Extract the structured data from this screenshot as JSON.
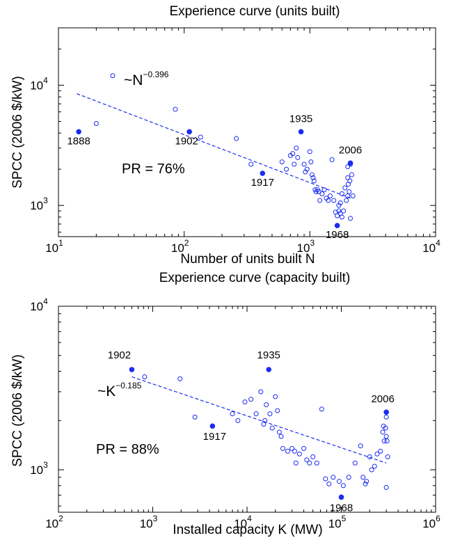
{
  "chart_data": [
    {
      "type": "scatter",
      "title": "Experience curve (units built)",
      "xlabel": "Number of units built N",
      "ylabel": "SPCC (2006 $/kW)",
      "xscale": "log",
      "yscale": "log",
      "xlim": [
        10,
        10000
      ],
      "ylim": [
        550,
        30000
      ],
      "xticks": [
        {
          "value": 10,
          "base": "10",
          "exp": "1"
        },
        {
          "value": 100,
          "base": "10",
          "exp": "2"
        },
        {
          "value": 1000,
          "base": "10",
          "exp": "3"
        },
        {
          "value": 10000,
          "base": "10",
          "exp": "4"
        }
      ],
      "yticks": [
        {
          "value": 1000,
          "base": "10",
          "exp": "3"
        },
        {
          "value": 10000,
          "base": "10",
          "exp": "4"
        }
      ],
      "fit_label": {
        "base": "~N",
        "exp": "−0.396"
      },
      "pr_label": "PR = 76%",
      "fit_line": {
        "x": [
          14,
          2100
        ],
        "y": [
          8500,
          1150
        ]
      },
      "highlighted": [
        {
          "year": "1888",
          "x": 14.5,
          "y": 4100
        },
        {
          "year": "1902",
          "x": 110,
          "y": 4100
        },
        {
          "year": "1917",
          "x": 420,
          "y": 1850
        },
        {
          "year": "1935",
          "x": 850,
          "y": 4100
        },
        {
          "year": "1968",
          "x": 1650,
          "y": 680
        },
        {
          "year": "2006",
          "x": 2100,
          "y": 2250
        }
      ],
      "open_points": [
        [
          20,
          4800
        ],
        [
          27,
          12000
        ],
        [
          85,
          6300
        ],
        [
          135,
          3700
        ],
        [
          260,
          3600
        ],
        [
          340,
          2200
        ],
        [
          600,
          2300
        ],
        [
          650,
          2000
        ],
        [
          700,
          2600
        ],
        [
          730,
          2700
        ],
        [
          750,
          2200
        ],
        [
          780,
          3000
        ],
        [
          800,
          2500
        ],
        [
          900,
          2200
        ],
        [
          920,
          1900
        ],
        [
          950,
          2000
        ],
        [
          1000,
          2800
        ],
        [
          1020,
          2300
        ],
        [
          1040,
          1800
        ],
        [
          1060,
          1700
        ],
        [
          1080,
          1600
        ],
        [
          1100,
          1350
        ],
        [
          1120,
          1300
        ],
        [
          1150,
          1350
        ],
        [
          1180,
          1300
        ],
        [
          1200,
          1100
        ],
        [
          1250,
          1250
        ],
        [
          1300,
          1350
        ],
        [
          1350,
          1150
        ],
        [
          1400,
          1100
        ],
        [
          1450,
          1200
        ],
        [
          1500,
          2400
        ],
        [
          1550,
          1100
        ],
        [
          1600,
          880
        ],
        [
          1650,
          820
        ],
        [
          1700,
          900
        ],
        [
          1750,
          860
        ],
        [
          1800,
          800
        ],
        [
          1850,
          900
        ],
        [
          1900,
          1400
        ],
        [
          1950,
          1100
        ],
        [
          2000,
          1700
        ],
        [
          2000,
          1200
        ],
        [
          2020,
          1500
        ],
        [
          2050,
          1300
        ],
        [
          2080,
          1600
        ],
        [
          2100,
          780
        ],
        [
          2150,
          1800
        ],
        [
          2200,
          1200
        ],
        [
          1700,
          1000
        ],
        [
          1750,
          1050
        ],
        [
          1800,
          1250
        ],
        [
          2000,
          2100
        ],
        [
          2100,
          2200
        ]
      ]
    },
    {
      "type": "scatter",
      "title": "Experience curve (capacity built)",
      "xlabel": "Installed capacity K (MW)",
      "ylabel": "SPCC (2006 $/kW)",
      "xscale": "log",
      "yscale": "log",
      "xlim": [
        100,
        1000000
      ],
      "ylim": [
        550,
        10000
      ],
      "xticks": [
        {
          "value": 100,
          "base": "10",
          "exp": "2"
        },
        {
          "value": 1000,
          "base": "10",
          "exp": "3"
        },
        {
          "value": 10000,
          "base": "10",
          "exp": "4"
        },
        {
          "value": 100000,
          "base": "10",
          "exp": "5"
        },
        {
          "value": 1000000,
          "base": "10",
          "exp": "6"
        }
      ],
      "yticks": [
        {
          "value": 1000,
          "base": "10",
          "exp": "3"
        },
        {
          "value": 10000,
          "base": "10",
          "exp": "4"
        }
      ],
      "fit_label": {
        "base": "~K",
        "exp": "−0.185"
      },
      "pr_label": "PR = 88%",
      "fit_line": {
        "x": [
          600,
          300000
        ],
        "y": [
          3700,
          1100
        ]
      },
      "highlighted": [
        {
          "year": "1902",
          "x": 600,
          "y": 4100
        },
        {
          "year": "1917",
          "x": 4300,
          "y": 1850
        },
        {
          "year": "1935",
          "x": 17000,
          "y": 4100
        },
        {
          "year": "1968",
          "x": 100000,
          "y": 680
        },
        {
          "year": "2006",
          "x": 300000,
          "y": 2250
        }
      ],
      "open_points": [
        [
          820,
          3700
        ],
        [
          1950,
          3600
        ],
        [
          2800,
          2100
        ],
        [
          7000,
          2200
        ],
        [
          8000,
          2000
        ],
        [
          9500,
          2600
        ],
        [
          11000,
          2700
        ],
        [
          12500,
          2200
        ],
        [
          14000,
          3000
        ],
        [
          15000,
          1900
        ],
        [
          15500,
          2000
        ],
        [
          16000,
          2500
        ],
        [
          17500,
          2200
        ],
        [
          18500,
          1800
        ],
        [
          20000,
          2800
        ],
        [
          21000,
          2300
        ],
        [
          22000,
          1700
        ],
        [
          23000,
          1600
        ],
        [
          24000,
          1350
        ],
        [
          27000,
          1300
        ],
        [
          30000,
          1350
        ],
        [
          32000,
          1300
        ],
        [
          33000,
          1100
        ],
        [
          36000,
          1250
        ],
        [
          40000,
          1350
        ],
        [
          43000,
          1150
        ],
        [
          46000,
          1100
        ],
        [
          50000,
          1200
        ],
        [
          55000,
          1100
        ],
        [
          62000,
          2350
        ],
        [
          68000,
          880
        ],
        [
          74000,
          820
        ],
        [
          82000,
          900
        ],
        [
          95000,
          850
        ],
        [
          105000,
          800
        ],
        [
          120000,
          900
        ],
        [
          140000,
          1100
        ],
        [
          160000,
          1400
        ],
        [
          170000,
          900
        ],
        [
          185000,
          850
        ],
        [
          200000,
          1200
        ],
        [
          210000,
          1000
        ],
        [
          225000,
          1050
        ],
        [
          240000,
          1250
        ],
        [
          260000,
          1300
        ],
        [
          275000,
          1700
        ],
        [
          285000,
          1500
        ],
        [
          295000,
          1800
        ],
        [
          300000,
          780
        ],
        [
          300000,
          1600
        ],
        [
          305000,
          1500
        ],
        [
          310000,
          1200
        ],
        [
          280000,
          1850
        ],
        [
          300000,
          2100
        ],
        [
          180000,
          820
        ]
      ]
    }
  ]
}
